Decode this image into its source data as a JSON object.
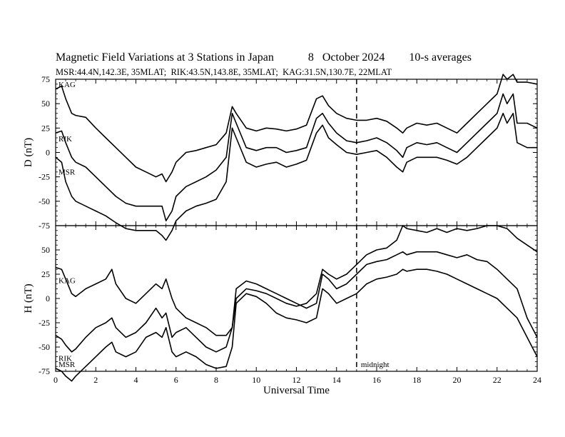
{
  "header": {
    "title": "Magnetic Field Variations at 3 Stations in Japan",
    "date": "8   October 2024",
    "averaging": "10-s averages",
    "stations_line": "MSR:44.4N,142.3E, 35MLAT;  RIK:43.5N,143.8E, 35MLAT;  KAG:31.5N,130.7E, 22MLAT"
  },
  "chart_data": {
    "type": "line",
    "xlabel": "Universal Time",
    "xlim": [
      0,
      24
    ],
    "x_ticks": [
      "0",
      "2",
      "4",
      "6",
      "8",
      "10",
      "12",
      "14",
      "16",
      "18",
      "20",
      "22",
      "24"
    ],
    "midnight_ut": 15,
    "midnight_label": "midnight",
    "panels": [
      {
        "ylabel": "D (nT)",
        "ylim": [
          -75,
          75
        ],
        "y_ticks": [
          "75",
          "50",
          "25",
          "0",
          "-25",
          "-50",
          "-75"
        ],
        "station_labels": [
          "KAG",
          "RIK",
          "MSR"
        ],
        "series": [
          {
            "name": "KAG",
            "x": [
              0,
              0.3,
              0.5,
              0.8,
              1,
              1.5,
              2,
              2.5,
              3,
              3.5,
              4,
              4.5,
              5,
              5.3,
              5.5,
              5.8,
              6,
              6.5,
              7,
              7.5,
              8,
              8.5,
              8.8,
              9,
              9.5,
              10,
              10.5,
              11,
              11.5,
              12,
              12.5,
              13,
              13.3,
              13.6,
              14,
              14.5,
              15,
              15.5,
              16,
              16.5,
              17,
              17.3,
              17.5,
              18,
              18.5,
              19,
              19.5,
              20,
              20.5,
              21,
              21.5,
              22,
              22.3,
              22.5,
              22.8,
              23,
              23.5,
              24
            ],
            "y": [
              65,
              68,
              55,
              40,
              38,
              36,
              25,
              15,
              5,
              -5,
              -15,
              -20,
              -25,
              -22,
              -30,
              -20,
              -10,
              0,
              2,
              5,
              8,
              20,
              47,
              40,
              25,
              22,
              25,
              24,
              22,
              24,
              28,
              55,
              58,
              48,
              40,
              35,
              33,
              33,
              35,
              32,
              25,
              20,
              25,
              30,
              28,
              30,
              25,
              20,
              30,
              40,
              50,
              60,
              80,
              75,
              80,
              72,
              72,
              70
            ]
          },
          {
            "name": "RIK",
            "x": [
              0,
              0.3,
              0.5,
              0.8,
              1,
              1.5,
              2,
              2.5,
              3,
              3.5,
              4,
              4.5,
              5,
              5.3,
              5.5,
              5.8,
              6,
              6.5,
              7,
              7.5,
              8,
              8.5,
              8.8,
              9,
              9.5,
              10,
              10.5,
              11,
              11.5,
              12,
              12.5,
              13,
              13.3,
              13.6,
              14,
              14.5,
              15,
              15.5,
              16,
              16.5,
              17,
              17.3,
              17.5,
              18,
              18.5,
              19,
              19.5,
              20,
              20.5,
              21,
              21.5,
              22,
              22.3,
              22.5,
              22.8,
              23,
              23.5,
              24
            ],
            "y": [
              20,
              22,
              10,
              -5,
              -10,
              -15,
              -25,
              -35,
              -45,
              -52,
              -55,
              -55,
              -55,
              -55,
              -70,
              -60,
              -45,
              -35,
              -30,
              -25,
              -18,
              -5,
              40,
              30,
              5,
              2,
              5,
              5,
              0,
              2,
              5,
              35,
              40,
              30,
              20,
              12,
              10,
              12,
              15,
              10,
              2,
              -5,
              5,
              10,
              8,
              10,
              5,
              0,
              10,
              20,
              30,
              40,
              60,
              50,
              60,
              30,
              30,
              25
            ]
          },
          {
            "name": "MSR",
            "x": [
              0,
              0.3,
              0.5,
              0.8,
              1,
              1.5,
              2,
              2.5,
              3,
              3.5,
              4,
              4.5,
              5,
              5.3,
              5.5,
              5.8,
              6,
              6.5,
              7,
              7.5,
              8,
              8.5,
              8.8,
              9,
              9.5,
              10,
              10.5,
              11,
              11.5,
              12,
              12.5,
              13,
              13.3,
              13.6,
              14,
              14.5,
              15,
              15.5,
              16,
              16.5,
              17,
              17.3,
              17.5,
              18,
              18.5,
              19,
              19.5,
              20,
              20.5,
              21,
              21.5,
              22,
              22.3,
              22.5,
              22.8,
              23,
              23.5,
              24
            ],
            "y": [
              -5,
              -10,
              -30,
              -45,
              -50,
              -55,
              -60,
              -65,
              -72,
              -78,
              -80,
              -80,
              -80,
              -85,
              -90,
              -80,
              -70,
              -60,
              -55,
              -52,
              -48,
              -30,
              25,
              15,
              -10,
              -15,
              -12,
              -10,
              -15,
              -12,
              -8,
              20,
              28,
              15,
              8,
              0,
              -2,
              0,
              2,
              -5,
              -15,
              -20,
              -10,
              -5,
              -5,
              -5,
              -8,
              -12,
              -5,
              5,
              15,
              25,
              40,
              30,
              40,
              10,
              5,
              5
            ]
          }
        ]
      },
      {
        "ylabel": "H (nT)",
        "ylim": [
          -75,
          75
        ],
        "y_ticks": [
          "75",
          "50",
          "25",
          "0",
          "-25",
          "-50",
          "-75"
        ],
        "station_labels": [
          "KAG",
          "RIK",
          "MSR"
        ],
        "series": [
          {
            "name": "KAG",
            "x": [
              0,
              0.3,
              0.5,
              0.8,
              1,
              1.5,
              2,
              2.5,
              2.8,
              3,
              3.5,
              4,
              4.5,
              5,
              5.3,
              5.5,
              5.8,
              6,
              6.5,
              7,
              7.5,
              8,
              8.5,
              8.8,
              9,
              9.5,
              10,
              10.5,
              11,
              11.5,
              12,
              12.5,
              13,
              13.3,
              13.6,
              14,
              14.5,
              15,
              15.5,
              16,
              16.5,
              17,
              17.3,
              17.5,
              18,
              18.5,
              19,
              19.5,
              20,
              20.5,
              21,
              21.5,
              22,
              22.5,
              23,
              23.5,
              24
            ],
            "y": [
              32,
              30,
              20,
              5,
              2,
              10,
              15,
              20,
              30,
              15,
              0,
              -5,
              5,
              15,
              10,
              20,
              0,
              -10,
              -20,
              -25,
              -30,
              -38,
              -38,
              -30,
              0,
              10,
              8,
              5,
              0,
              -5,
              -8,
              -5,
              5,
              30,
              25,
              20,
              25,
              35,
              45,
              50,
              52,
              60,
              75,
              72,
              70,
              68,
              72,
              68,
              72,
              70,
              72,
              75,
              75,
              72,
              62,
              55,
              48
            ]
          },
          {
            "name": "RIK",
            "x": [
              0,
              0.3,
              0.5,
              0.8,
              1,
              1.5,
              2,
              2.5,
              2.8,
              3,
              3.5,
              4,
              4.5,
              5,
              5.3,
              5.5,
              5.8,
              6,
              6.5,
              7,
              7.5,
              8,
              8.5,
              8.8,
              9,
              9.5,
              10,
              10.5,
              11,
              11.5,
              12,
              12.5,
              13,
              13.3,
              13.6,
              14,
              14.5,
              15,
              15.5,
              16,
              16.5,
              17,
              17.3,
              17.5,
              18,
              18.5,
              19,
              19.5,
              20,
              20.5,
              21,
              21.5,
              22,
              22.5,
              23,
              23.5,
              24
            ],
            "y": [
              -38,
              -42,
              -48,
              -55,
              -52,
              -40,
              -30,
              -25,
              -20,
              -30,
              -40,
              -35,
              -25,
              -10,
              -20,
              -15,
              -40,
              -35,
              -30,
              -40,
              -50,
              -55,
              -50,
              -30,
              10,
              18,
              15,
              10,
              5,
              0,
              -5,
              -10,
              -5,
              25,
              20,
              10,
              15,
              25,
              35,
              38,
              40,
              45,
              48,
              45,
              48,
              48,
              48,
              45,
              42,
              45,
              40,
              38,
              30,
              20,
              10,
              -20,
              -40
            ]
          },
          {
            "name": "MSR",
            "x": [
              0,
              0.3,
              0.5,
              0.8,
              1,
              1.5,
              2,
              2.5,
              2.8,
              3,
              3.5,
              4,
              4.5,
              5,
              5.3,
              5.5,
              5.8,
              6,
              6.5,
              7,
              7.5,
              8,
              8.5,
              8.8,
              9,
              9.5,
              10,
              10.5,
              11,
              11.5,
              12,
              12.5,
              13,
              13.3,
              13.6,
              14,
              14.5,
              15,
              15.5,
              16,
              16.5,
              17,
              17.3,
              17.5,
              18,
              18.5,
              19,
              19.5,
              20,
              20.5,
              21,
              21.5,
              22,
              22.5,
              23,
              23.5,
              24
            ],
            "y": [
              -72,
              -75,
              -80,
              -85,
              -80,
              -70,
              -60,
              -50,
              -45,
              -55,
              -60,
              -55,
              -40,
              -35,
              -40,
              -30,
              -55,
              -60,
              -55,
              -60,
              -68,
              -72,
              -70,
              -50,
              -5,
              5,
              2,
              -5,
              -15,
              -20,
              -22,
              -25,
              -20,
              10,
              5,
              -5,
              0,
              5,
              15,
              20,
              22,
              25,
              30,
              28,
              30,
              30,
              28,
              25,
              20,
              15,
              10,
              5,
              0,
              -10,
              -20,
              -40,
              -60
            ]
          }
        ]
      }
    ]
  }
}
